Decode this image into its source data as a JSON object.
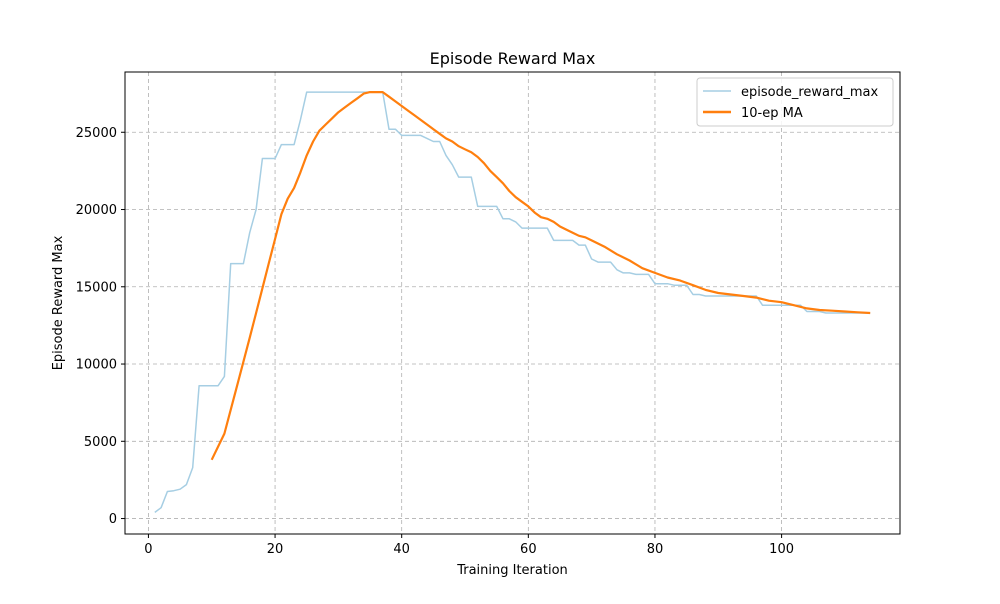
{
  "chart_data": {
    "type": "line",
    "title": "Episode Reward Max",
    "xlabel": "Training Iteration",
    "ylabel": "Episode Reward Max",
    "xlim": [
      -3.7,
      118.7
    ],
    "ylim": [
      -1000,
      28900
    ],
    "xticks": [
      0,
      20,
      40,
      60,
      80,
      100
    ],
    "yticks": [
      0,
      5000,
      10000,
      15000,
      20000,
      25000
    ],
    "grid": true,
    "legend": "top-right",
    "series": [
      {
        "name": "episode_reward_max",
        "color": "#a6cee3",
        "x": [
          1,
          2,
          3,
          4,
          5,
          6,
          7,
          8,
          9,
          10,
          11,
          12,
          13,
          14,
          15,
          16,
          17,
          18,
          19,
          20,
          21,
          22,
          23,
          24,
          25,
          26,
          27,
          28,
          29,
          30,
          31,
          32,
          33,
          34,
          35,
          36,
          37,
          38,
          39,
          40,
          41,
          42,
          43,
          44,
          45,
          46,
          47,
          48,
          49,
          50,
          51,
          52,
          53,
          54,
          55,
          56,
          57,
          58,
          59,
          60,
          61,
          62,
          63,
          64,
          65,
          66,
          67,
          68,
          69,
          70,
          71,
          72,
          73,
          74,
          75,
          76,
          77,
          78,
          79,
          80,
          81,
          82,
          83,
          84,
          85,
          86,
          87,
          88,
          89,
          90,
          91,
          92,
          93,
          94,
          95,
          96,
          97,
          98,
          99,
          100,
          101,
          102,
          103,
          104,
          105,
          106,
          107,
          108,
          109,
          110,
          111,
          112,
          113,
          114
        ],
        "y": [
          400,
          700,
          1750,
          1800,
          1900,
          2200,
          3300,
          8600,
          8600,
          8600,
          8600,
          9200,
          16500,
          16500,
          16500,
          18500,
          20000,
          23300,
          23300,
          23300,
          24200,
          24200,
          24200,
          25800,
          27600,
          27600,
          27600,
          27600,
          27600,
          27600,
          27600,
          27600,
          27600,
          27600,
          27600,
          27600,
          27600,
          25200,
          25200,
          24800,
          24800,
          24800,
          24800,
          24600,
          24400,
          24400,
          23500,
          22900,
          22100,
          22100,
          22100,
          20200,
          20200,
          20200,
          20200,
          19400,
          19400,
          19200,
          18800,
          18800,
          18800,
          18800,
          18800,
          18000,
          18000,
          18000,
          18000,
          17700,
          17700,
          16800,
          16600,
          16600,
          16600,
          16100,
          15900,
          15900,
          15800,
          15800,
          15800,
          15200,
          15200,
          15200,
          15100,
          15100,
          15100,
          14500,
          14500,
          14400,
          14400,
          14400,
          14400,
          14400,
          14400,
          14400,
          14400,
          14400,
          13800,
          13800,
          13800,
          13800,
          13800,
          13800,
          13800,
          13400,
          13400,
          13400,
          13300,
          13300,
          13300,
          13300,
          13300,
          13300,
          13300,
          13300
        ]
      },
      {
        "name": "10-ep MA",
        "color": "#ff7f0e",
        "x": [
          10,
          12,
          14,
          16,
          17,
          18,
          19,
          20,
          21,
          22,
          23,
          24,
          25,
          26,
          27,
          28,
          29,
          30,
          31,
          32,
          33,
          34,
          35,
          36,
          37,
          38,
          39,
          40,
          41,
          42,
          43,
          44,
          45,
          46,
          47,
          48,
          49,
          50,
          51,
          52,
          53,
          54,
          55,
          56,
          57,
          58,
          59,
          60,
          61,
          62,
          63,
          64,
          65,
          66,
          67,
          68,
          69,
          70,
          72,
          74,
          76,
          78,
          80,
          82,
          84,
          86,
          88,
          90,
          92,
          94,
          96,
          98,
          100,
          102,
          104,
          106,
          108,
          110,
          112,
          114
        ],
        "y": [
          3800,
          5500,
          8600,
          11700,
          13300,
          14900,
          16500,
          18100,
          19700,
          20700,
          21400,
          22400,
          23500,
          24400,
          25100,
          25500,
          25900,
          26300,
          26600,
          26900,
          27200,
          27500,
          27600,
          27600,
          27600,
          27300,
          27000,
          26700,
          26400,
          26100,
          25800,
          25500,
          25200,
          24900,
          24600,
          24400,
          24100,
          23900,
          23700,
          23400,
          23000,
          22500,
          22100,
          21700,
          21200,
          20800,
          20500,
          20200,
          19800,
          19500,
          19400,
          19200,
          18900,
          18700,
          18500,
          18300,
          18200,
          18000,
          17600,
          17100,
          16700,
          16200,
          15900,
          15600,
          15400,
          15100,
          14800,
          14600,
          14500,
          14400,
          14300,
          14100,
          14000,
          13800,
          13600,
          13500,
          13450,
          13400,
          13350,
          13300
        ]
      }
    ]
  }
}
